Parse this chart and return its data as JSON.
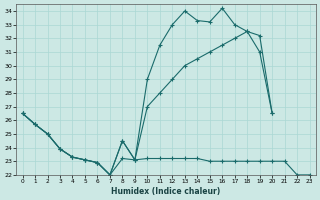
{
  "xlabel": "Humidex (Indice chaleur)",
  "bg_color": "#cce8e4",
  "line_color": "#1a6b6b",
  "grid_color": "#aad8d4",
  "xlim": [
    -0.5,
    23.5
  ],
  "ylim": [
    22,
    34.5
  ],
  "yticks": [
    22,
    23,
    24,
    25,
    26,
    27,
    28,
    29,
    30,
    31,
    32,
    33,
    34
  ],
  "xticks": [
    0,
    1,
    2,
    3,
    4,
    5,
    6,
    7,
    8,
    9,
    10,
    11,
    12,
    13,
    14,
    15,
    16,
    17,
    18,
    19,
    20,
    21,
    22,
    23
  ],
  "line_min_x": [
    0,
    1,
    2,
    3,
    4,
    5,
    6,
    7,
    8,
    9,
    10,
    11,
    12,
    13,
    14,
    15,
    16,
    17,
    18,
    19,
    20,
    21,
    22,
    23
  ],
  "line_min_y": [
    26.5,
    25.7,
    25.0,
    23.9,
    23.3,
    23.1,
    22.9,
    22.0,
    23.2,
    23.1,
    23.2,
    23.2,
    23.2,
    23.2,
    23.2,
    23.0,
    23.0,
    23.0,
    23.0,
    23.0,
    23.0,
    23.0,
    22.0,
    22.0
  ],
  "line_max_x": [
    0,
    1,
    2,
    3,
    4,
    5,
    6,
    7,
    8,
    9,
    10,
    11,
    12,
    13,
    14,
    15,
    16,
    17,
    18,
    19,
    20
  ],
  "line_max_y": [
    26.5,
    25.7,
    25.0,
    23.9,
    23.3,
    23.1,
    22.9,
    22.0,
    24.5,
    23.1,
    29.0,
    31.5,
    33.0,
    34.0,
    33.3,
    33.2,
    34.2,
    33.0,
    32.5,
    32.2,
    26.5
  ],
  "line_mean_x": [
    0,
    1,
    2,
    3,
    4,
    5,
    6,
    7,
    8,
    9,
    10,
    11,
    12,
    13,
    14,
    15,
    16,
    17,
    18,
    19,
    20
  ],
  "line_mean_y": [
    26.5,
    25.7,
    25.0,
    23.9,
    23.3,
    23.1,
    22.9,
    22.0,
    24.5,
    23.1,
    27.0,
    28.0,
    29.0,
    30.0,
    30.5,
    31.0,
    31.5,
    32.0,
    32.5,
    31.0,
    26.5
  ]
}
